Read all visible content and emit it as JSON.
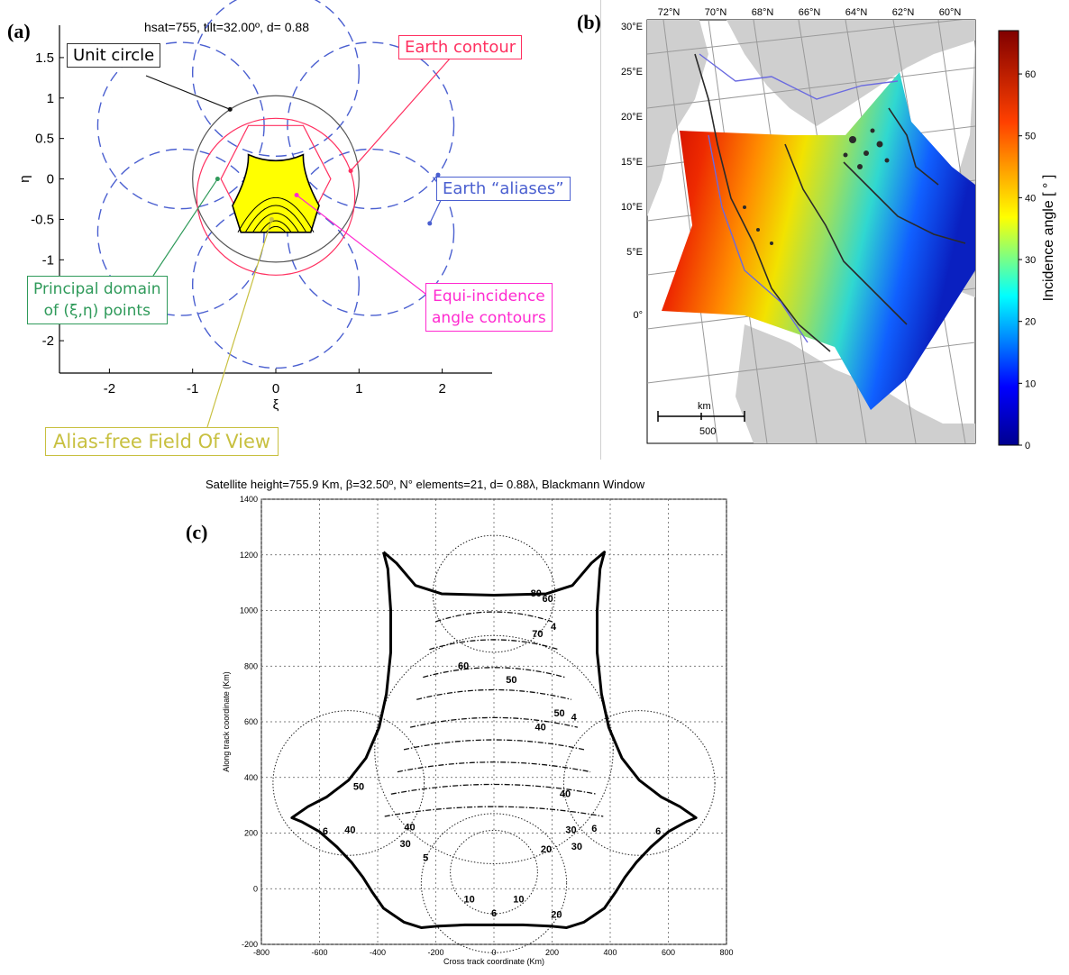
{
  "panels": {
    "a_label": "(a)",
    "b_label": "(b)",
    "c_label": "(c)"
  },
  "panel_a": {
    "title": "hsat=755, tilt=32.00º, d= 0.88",
    "callouts": {
      "unit_circle": "Unit circle",
      "earth_contour": "Earth contour",
      "earth_aliases": "Earth “aliases”",
      "principal_domain": [
        "Principal domain",
        "of (ξ,η) points"
      ],
      "equi_incidence": [
        "Equi-incidence",
        "angle contours"
      ],
      "alias_free": "Alias-free Field Of View"
    },
    "colors": {
      "unit_circle": "#555555",
      "aliases": "#4a5fd0",
      "earth_contour": "#ff3060",
      "fov_fill": "#ffff00",
      "green_callout": "#2f9a5a",
      "magenta_callout": "#ff2ad0",
      "yellow_callout": "#c8c040"
    }
  },
  "panel_b": {
    "top_ticks": [
      "72°N",
      "70°N",
      "68°N",
      "66°N",
      "64°N",
      "62°N",
      "60°N"
    ],
    "left_ticks": [
      "30°E",
      "25°E",
      "20°E",
      "15°E",
      "10°E",
      "5°E",
      "0°"
    ],
    "scalebar_unit": "km",
    "scalebar_value": "500",
    "colorbar_label": "Incidence angle [ ° ]",
    "colorbar_ticks": [
      "60",
      "50",
      "40",
      "30",
      "20",
      "10",
      "0"
    ]
  },
  "chart_data": [
    {
      "type": "line",
      "panel": "a",
      "title": "hsat=755, tilt=32.00º, d= 0.88",
      "xlabel": "ξ",
      "ylabel": "η",
      "xlim": [
        -2.6,
        2.6
      ],
      "ylim": [
        -2.4,
        1.9
      ],
      "xticks": [
        "-2",
        "-1",
        "0",
        "1",
        "2"
      ],
      "yticks": [
        "1.5",
        "1",
        "0.5",
        "0",
        "-0.5",
        "-1",
        "-1.5",
        "-2"
      ],
      "unit_circle": {
        "center": [
          0,
          0
        ],
        "radius": 1
      },
      "alias_circles": {
        "radius": 1,
        "centers": [
          [
            0,
            1.31
          ],
          [
            1.14,
            0.66
          ],
          [
            1.14,
            -0.66
          ],
          [
            0,
            -1.31
          ],
          [
            -1.14,
            -0.66
          ],
          [
            -1.14,
            0.66
          ]
        ]
      },
      "hexagon": [
        [
          -0.33,
          0.66
        ],
        [
          0.33,
          0.66
        ],
        [
          0.66,
          0
        ],
        [
          0.33,
          -0.66
        ],
        [
          -0.33,
          -0.66
        ],
        [
          -0.66,
          0
        ]
      ]
    },
    {
      "type": "heatmap",
      "panel": "b",
      "colorbar_label": "Incidence angle [ ° ]",
      "colorbar_range": [
        0,
        67
      ],
      "colorbar_ticks": [
        0,
        10,
        20,
        30,
        40,
        50,
        60
      ]
    },
    {
      "type": "line",
      "panel": "c",
      "title": "Satellite height=755.9 Km, β=32.50º, N° elements=21, d= 0.88λ, Blackmann Window",
      "xlabel": "Cross track coordinate (Km)",
      "ylabel": "Along track coordinate (Km)",
      "xlim": [
        -800,
        800
      ],
      "ylim": [
        -200,
        1400
      ],
      "xticks": [
        "-800",
        "-600",
        "-400",
        "-200",
        "0",
        "200",
        "400",
        "600",
        "800"
      ],
      "yticks": [
        "1400",
        "1200",
        "1000",
        "800",
        "600",
        "400",
        "200",
        "0",
        "-200"
      ],
      "grid": true,
      "boundary": [
        [
          -380,
          1210
        ],
        [
          -335,
          1170
        ],
        [
          -270,
          1090
        ],
        [
          -180,
          1060
        ],
        [
          0,
          1055
        ],
        [
          180,
          1060
        ],
        [
          270,
          1090
        ],
        [
          335,
          1170
        ],
        [
          380,
          1210
        ],
        [
          365,
          1150
        ],
        [
          355,
          1000
        ],
        [
          355,
          850
        ],
        [
          370,
          700
        ],
        [
          395,
          580
        ],
        [
          440,
          470
        ],
        [
          500,
          390
        ],
        [
          575,
          330
        ],
        [
          640,
          295
        ],
        [
          695,
          255
        ],
        [
          660,
          240
        ],
        [
          600,
          205
        ],
        [
          540,
          150
        ],
        [
          490,
          95
        ],
        [
          450,
          40
        ],
        [
          420,
          -10
        ],
        [
          380,
          -70
        ],
        [
          310,
          -120
        ],
        [
          250,
          -140
        ],
        [
          200,
          -135
        ],
        [
          100,
          -130
        ],
        [
          0,
          -130
        ],
        [
          -100,
          -130
        ],
        [
          -200,
          -135
        ],
        [
          -250,
          -140
        ],
        [
          -310,
          -120
        ],
        [
          -380,
          -70
        ],
        [
          -420,
          -10
        ],
        [
          -450,
          40
        ],
        [
          -490,
          95
        ],
        [
          -540,
          150
        ],
        [
          -600,
          205
        ],
        [
          -660,
          240
        ],
        [
          -695,
          255
        ],
        [
          -640,
          295
        ],
        [
          -575,
          330
        ],
        [
          -500,
          390
        ],
        [
          -440,
          470
        ],
        [
          -395,
          580
        ],
        [
          -370,
          700
        ],
        [
          -355,
          850
        ],
        [
          -355,
          1000
        ],
        [
          -365,
          1150
        ],
        [
          -380,
          1210
        ]
      ],
      "contour_labels": [
        {
          "text": "80",
          "x": 145,
          "y": 1050
        },
        {
          "text": "60",
          "x": 185,
          "y": 1030
        },
        {
          "text": "4",
          "x": 205,
          "y": 930
        },
        {
          "text": "70",
          "x": 150,
          "y": 905
        },
        {
          "text": "60",
          "x": -105,
          "y": 790
        },
        {
          "text": "50",
          "x": 60,
          "y": 740
        },
        {
          "text": "50",
          "x": 225,
          "y": 620
        },
        {
          "text": "4",
          "x": 275,
          "y": 605
        },
        {
          "text": "40",
          "x": 160,
          "y": 570
        },
        {
          "text": "50",
          "x": -465,
          "y": 355
        },
        {
          "text": "40",
          "x": 245,
          "y": 330
        },
        {
          "text": "6",
          "x": -580,
          "y": 195
        },
        {
          "text": "40",
          "x": -495,
          "y": 200
        },
        {
          "text": "40",
          "x": -290,
          "y": 210
        },
        {
          "text": "30",
          "x": 265,
          "y": 200
        },
        {
          "text": "6",
          "x": 345,
          "y": 205
        },
        {
          "text": "30",
          "x": -305,
          "y": 150
        },
        {
          "text": "20",
          "x": 180,
          "y": 130
        },
        {
          "text": "30",
          "x": 285,
          "y": 140
        },
        {
          "text": "6",
          "x": 565,
          "y": 195
        },
        {
          "text": "5",
          "x": -235,
          "y": 100
        },
        {
          "text": "10",
          "x": -85,
          "y": -50
        },
        {
          "text": "10",
          "x": 85,
          "y": -50
        },
        {
          "text": "6",
          "x": 0,
          "y": -100
        },
        {
          "text": "20",
          "x": 215,
          "y": -105
        }
      ],
      "contours": [
        {
          "cx": 0,
          "cy": 1060,
          "r": 210
        },
        {
          "cx": 0,
          "cy": 500,
          "r": 410
        },
        {
          "cx": 0,
          "cy": 60,
          "r": 150
        },
        {
          "cx": 0,
          "cy": 20,
          "r": 250
        },
        {
          "cx": -500,
          "cy": 380,
          "r": 260
        },
        {
          "cx": 500,
          "cy": 380,
          "r": 260
        }
      ]
    }
  ]
}
